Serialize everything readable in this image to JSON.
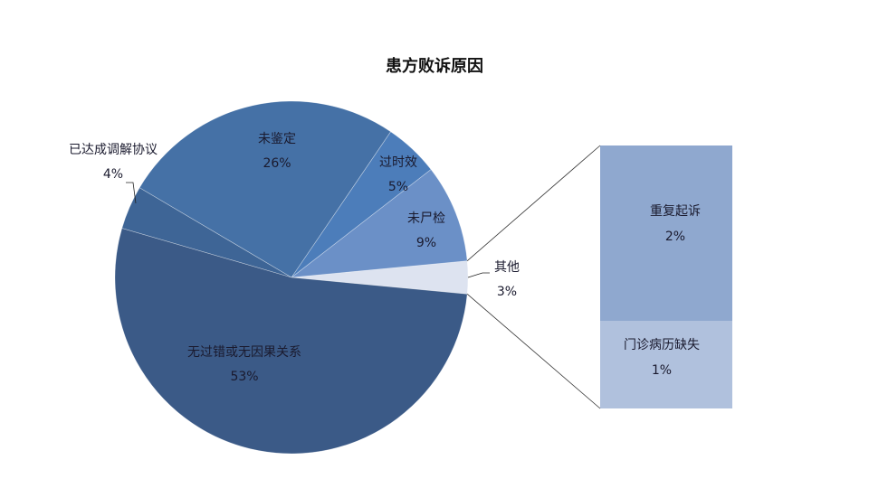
{
  "chart_data": {
    "type": "bar-of-pie",
    "title": "患方败诉原因",
    "pie": [
      {
        "label": "其他",
        "value": 3,
        "display": "3%",
        "color": "#dde3f0"
      },
      {
        "label": "未尸检",
        "value": 9,
        "display": "9%",
        "color": "#6b90c7"
      },
      {
        "label": "过时效",
        "value": 5,
        "display": "5%",
        "color": "#4c7dba"
      },
      {
        "label": "未鉴定",
        "value": 26,
        "display": "26%",
        "color": "#4571a6"
      },
      {
        "label": "已达成调解协议",
        "value": 4,
        "display": "4%",
        "color": "#3e6596"
      },
      {
        "label": "无过错或无因果关系",
        "value": 53,
        "display": "53%",
        "color": "#3b5a87"
      }
    ],
    "bar": [
      {
        "label": "重复起诉",
        "value": 2,
        "display": "2%",
        "color": "#8fa8cf"
      },
      {
        "label": "门诊病历缺失",
        "value": 1,
        "display": "1%",
        "color": "#b0c1dd"
      }
    ]
  }
}
